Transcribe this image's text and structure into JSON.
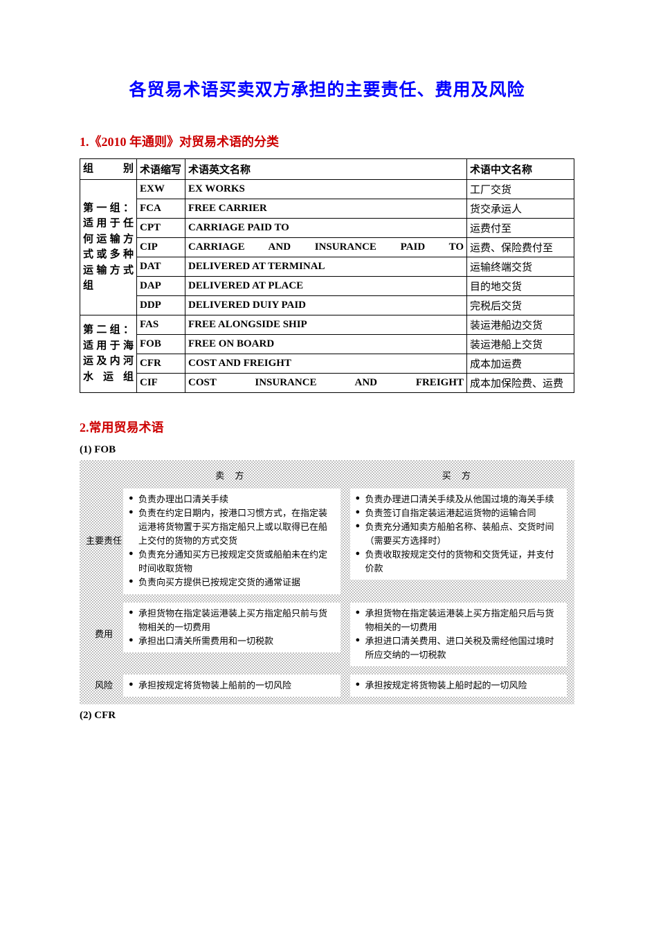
{
  "title": "各贸易术语买卖双方承担的主要责任、费用及风险",
  "section1": {
    "heading": "1.《2010 年通则》对贸易术语的分类",
    "colors": {
      "heading": "#cc0000"
    }
  },
  "terms_table": {
    "headers": {
      "group": "组　别",
      "abbr": "术语缩写",
      "en": "术语英文名称",
      "cn": "术语中文名称"
    },
    "groups": [
      {
        "label": "第一组：适用于任何运输方式或多种运输方式组",
        "rows": [
          {
            "abbr": "EXW",
            "en": "EX WORKS",
            "cn": "工厂交货",
            "justify": false
          },
          {
            "abbr": "FCA",
            "en": "FREE CARRIER",
            "cn": "货交承运人",
            "justify": false
          },
          {
            "abbr": "CPT",
            "en": "CARRIAGE PAID TO",
            "cn": "运费付至",
            "justify": false
          },
          {
            "abbr": "CIP",
            "en": "CARRIAGE AND INSURANCE PAID TO",
            "cn": "运费、保险费付至",
            "justify": true
          },
          {
            "abbr": "DAT",
            "en": "DELIVERED AT TERMINAL",
            "cn": "运输终端交货",
            "justify": false
          },
          {
            "abbr": "DAP",
            "en": "DELIVERED AT PLACE",
            "cn": "目的地交货",
            "justify": false
          },
          {
            "abbr": "DDP",
            "en": "DELIVERED DUIY PAID",
            "cn": "完税后交货",
            "justify": false
          }
        ]
      },
      {
        "label": "第二组：适用于海运及内河水运组",
        "rows": [
          {
            "abbr": "FAS",
            "en": "FREE ALONGSIDE SHIP",
            "cn": "装运港船边交货",
            "justify": false
          },
          {
            "abbr": "FOB",
            "en": "FREE ON BOARD",
            "cn": "装运港船上交货",
            "justify": false
          },
          {
            "abbr": "CFR",
            "en": "COST AND FREIGHT",
            "cn": "成本加运费",
            "justify": false
          },
          {
            "abbr": "CIF",
            "en": "COST INSURANCE AND FREIGHT",
            "cn": "成本加保险费、运费",
            "justify": true
          }
        ]
      }
    ]
  },
  "section2": {
    "heading": "2.常用贸易术语"
  },
  "fob": {
    "label": "(1) FOB",
    "headers": {
      "seller": "卖 方",
      "buyer": "买 方"
    },
    "rows": [
      {
        "label": "主要责任",
        "seller": [
          "负责办理出口清关手续",
          "负责在约定日期内，按港口习惯方式，在指定装运港将货物置于买方指定船只上或以取得已在船上交付的货物的方式交货",
          "负责充分通知买方已按规定交货或船舶未在约定时间收取货物",
          "负责向买方提供已按规定交货的通常证据"
        ],
        "buyer": [
          "负责办理进口清关手续及从他国过境的海关手续",
          "负责签订自指定装运港起运货物的运输合同",
          "负责充分通知卖方船舶名称、装船点、交货时间（需要买方选择时）",
          "负责收取按规定交付的货物和交货凭证，并支付价款"
        ]
      },
      {
        "label": "费用",
        "seller": [
          "承担货物在指定装运港装上买方指定船只前与货物相关的一切费用",
          "承担出口清关所需费用和一切税款"
        ],
        "buyer": [
          "承担货物在指定装运港装上买方指定船只后与货物相关的一切费用",
          "承担进口清关费用、进口关税及需经他国过境时所应交纳的一切税款"
        ]
      },
      {
        "label": "风险",
        "seller": [
          "承担按规定将货物装上船前的一切风险"
        ],
        "buyer": [
          "承担按规定将货物装上船时起的一切风险"
        ]
      }
    ]
  },
  "cfr": {
    "label": "(2) CFR"
  },
  "styling": {
    "page_bg": "#ffffff",
    "title_color": "#0000ff",
    "section_color": "#cc0000",
    "border_color": "#000000",
    "checker_color": "#c0c0c0",
    "cell_bg": "#ffffff",
    "title_fontsize": 25,
    "section_fontsize": 18,
    "table_fontsize": 15,
    "fob_fontsize": 13
  }
}
